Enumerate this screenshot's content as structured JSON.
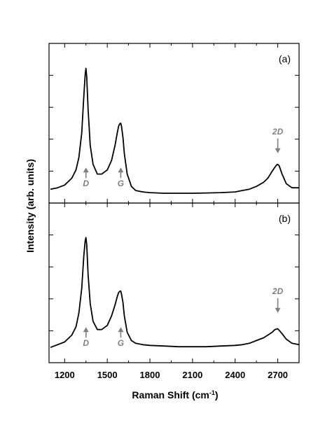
{
  "chart_data": {
    "type": "line",
    "xlabel": "Raman Shift (cm",
    "xlabel_superscript": "-1",
    "xlabel_suffix": ")",
    "ylabel": "Intensity (arb. units)",
    "x_ticks": [
      1200,
      1500,
      1800,
      2100,
      2400,
      2700
    ],
    "xlim": [
      1090,
      2850
    ],
    "y_tick_labels": "none",
    "grid": false,
    "legend": "none",
    "line_color": "#000000",
    "annotation_color": "#808080",
    "panels": [
      {
        "tag": "(a)",
        "ylim": [
          0,
          1.0
        ],
        "peaks": [
          {
            "label": "D",
            "x": 1350
          },
          {
            "label": "G",
            "x": 1595
          },
          {
            "label": "2D",
            "x": 2700
          }
        ],
        "series": [
          {
            "x": [
              1100,
              1150,
              1200,
              1250,
              1280,
              1300,
              1320,
              1335,
              1345,
              1350,
              1355,
              1365,
              1380,
              1400,
              1430,
              1460,
              1500,
              1530,
              1555,
              1570,
              1580,
              1590,
              1595,
              1600,
              1610,
              1620,
              1640,
              1670,
              1700,
              1750,
              1800,
              1900,
              2000,
              2100,
              2200,
              2300,
              2400,
              2450,
              2500,
              2550,
              2600,
              2630,
              2660,
              2680,
              2695,
              2700,
              2710,
              2730,
              2760,
              2800,
              2850
            ],
            "y": [
              0.04,
              0.05,
              0.07,
              0.12,
              0.18,
              0.27,
              0.45,
              0.72,
              0.88,
              0.92,
              0.86,
              0.62,
              0.36,
              0.22,
              0.15,
              0.15,
              0.18,
              0.25,
              0.36,
              0.45,
              0.5,
              0.52,
              0.52,
              0.5,
              0.42,
              0.3,
              0.15,
              0.06,
              0.03,
              0.02,
              0.015,
              0.01,
              0.01,
              0.01,
              0.012,
              0.015,
              0.02,
              0.03,
              0.04,
              0.06,
              0.09,
              0.12,
              0.17,
              0.2,
              0.22,
              0.22,
              0.21,
              0.15,
              0.08,
              0.05,
              0.05
            ]
          }
        ]
      },
      {
        "tag": "(b)",
        "ylim": [
          0,
          1.0
        ],
        "peaks": [
          {
            "label": "D",
            "x": 1350
          },
          {
            "label": "G",
            "x": 1595
          },
          {
            "label": "2D",
            "x": 2700
          }
        ],
        "series": [
          {
            "x": [
              1100,
              1150,
              1200,
              1250,
              1280,
              1300,
              1320,
              1335,
              1345,
              1350,
              1355,
              1365,
              1380,
              1400,
              1430,
              1460,
              1500,
              1530,
              1555,
              1570,
              1580,
              1590,
              1595,
              1600,
              1610,
              1620,
              1640,
              1670,
              1700,
              1750,
              1800,
              1900,
              2000,
              2100,
              2200,
              2300,
              2400,
              2450,
              2500,
              2550,
              2600,
              2630,
              2660,
              2680,
              2695,
              2700,
              2710,
              2730,
              2760,
              2800,
              2850
            ],
            "y": [
              0.05,
              0.07,
              0.09,
              0.14,
              0.2,
              0.3,
              0.48,
              0.72,
              0.83,
              0.85,
              0.8,
              0.58,
              0.37,
              0.24,
              0.18,
              0.18,
              0.21,
              0.28,
              0.36,
              0.42,
              0.45,
              0.46,
              0.46,
              0.44,
              0.38,
              0.28,
              0.16,
              0.1,
              0.08,
              0.07,
              0.065,
              0.06,
              0.055,
              0.055,
              0.055,
              0.06,
              0.065,
              0.07,
              0.08,
              0.1,
              0.12,
              0.14,
              0.16,
              0.18,
              0.185,
              0.185,
              0.175,
              0.15,
              0.11,
              0.08,
              0.07
            ]
          }
        ]
      }
    ]
  }
}
